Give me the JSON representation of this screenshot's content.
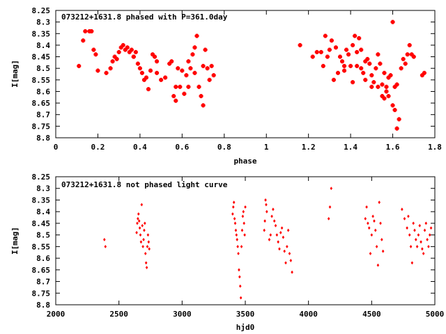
{
  "colors": {
    "points": "#ff0000",
    "frame": "#000000",
    "background": "#ffffff"
  },
  "chart_data": [
    {
      "type": "scatter",
      "title": "073212+1631.8 phased with P=361.0day",
      "xlabel": "phase",
      "ylabel": "I[mag]",
      "xlim": [
        0,
        1.8
      ],
      "ylim": [
        8.25,
        8.8
      ],
      "y_inverted": true,
      "x_ticks": [
        "0",
        "0.2",
        "0.4",
        "0.6",
        "0.8",
        "1",
        "1.2",
        "1.4",
        "1.6",
        "1.8"
      ],
      "y_ticks": [
        "8.25",
        "8.3",
        "8.35",
        "8.4",
        "8.45",
        "8.5",
        "8.55",
        "8.6",
        "8.65",
        "8.7",
        "8.75",
        "8.8"
      ],
      "grid": false,
      "marker": "cross",
      "points": [
        [
          0.11,
          8.49
        ],
        [
          0.13,
          8.38
        ],
        [
          0.14,
          8.34
        ],
        [
          0.16,
          8.34
        ],
        [
          0.17,
          8.34
        ],
        [
          0.18,
          8.42
        ],
        [
          0.19,
          8.44
        ],
        [
          0.2,
          8.51
        ],
        [
          0.24,
          8.52
        ],
        [
          0.26,
          8.5
        ],
        [
          0.27,
          8.47
        ],
        [
          0.28,
          8.45
        ],
        [
          0.29,
          8.46
        ],
        [
          0.3,
          8.43
        ],
        [
          0.31,
          8.41
        ],
        [
          0.32,
          8.4
        ],
        [
          0.33,
          8.42
        ],
        [
          0.34,
          8.41
        ],
        [
          0.35,
          8.43
        ],
        [
          0.36,
          8.42
        ],
        [
          0.37,
          8.45
        ],
        [
          0.38,
          8.43
        ],
        [
          0.39,
          8.48
        ],
        [
          0.4,
          8.5
        ],
        [
          0.41,
          8.52
        ],
        [
          0.42,
          8.55
        ],
        [
          0.43,
          8.54
        ],
        [
          0.44,
          8.59
        ],
        [
          0.45,
          8.51
        ],
        [
          0.46,
          8.44
        ],
        [
          0.47,
          8.45
        ],
        [
          0.48,
          8.47
        ],
        [
          0.5,
          8.55
        ],
        [
          0.52,
          8.54
        ],
        [
          0.54,
          8.48
        ],
        [
          0.55,
          8.47
        ],
        [
          0.56,
          8.62
        ],
        [
          0.57,
          8.58
        ],
        [
          0.58,
          8.5
        ],
        [
          0.59,
          8.58
        ],
        [
          0.6,
          8.51
        ],
        [
          0.61,
          8.61
        ],
        [
          0.62,
          8.53
        ],
        [
          0.63,
          8.47
        ],
        [
          0.64,
          8.5
        ],
        [
          0.65,
          8.44
        ],
        [
          0.66,
          8.41
        ],
        [
          0.67,
          8.36
        ],
        [
          0.68,
          8.58
        ],
        [
          0.69,
          8.62
        ],
        [
          0.7,
          8.49
        ],
        [
          0.71,
          8.42
        ],
        [
          0.72,
          8.5
        ],
        [
          0.73,
          8.55
        ],
        [
          0.74,
          8.49
        ],
        [
          0.75,
          8.53
        ],
        [
          0.63,
          8.58
        ],
        [
          0.66,
          8.52
        ],
        [
          0.7,
          8.66
        ],
        [
          0.57,
          8.64
        ],
        [
          0.48,
          8.52
        ],
        [
          0.37,
          8.45
        ],
        [
          1.16,
          8.4
        ],
        [
          1.22,
          8.45
        ],
        [
          1.24,
          8.43
        ],
        [
          1.26,
          8.43
        ],
        [
          1.27,
          8.49
        ],
        [
          1.28,
          8.36
        ],
        [
          1.29,
          8.45
        ],
        [
          1.3,
          8.42
        ],
        [
          1.31,
          8.38
        ],
        [
          1.32,
          8.55
        ],
        [
          1.33,
          8.41
        ],
        [
          1.34,
          8.52
        ],
        [
          1.35,
          8.45
        ],
        [
          1.36,
          8.47
        ],
        [
          1.37,
          8.49
        ],
        [
          1.38,
          8.42
        ],
        [
          1.39,
          8.44
        ],
        [
          1.4,
          8.49
        ],
        [
          1.41,
          8.4
        ],
        [
          1.42,
          8.36
        ],
        [
          1.43,
          8.43
        ],
        [
          1.44,
          8.37
        ],
        [
          1.45,
          8.5
        ],
        [
          1.46,
          8.52
        ],
        [
          1.47,
          8.55
        ],
        [
          1.48,
          8.46
        ],
        [
          1.49,
          8.48
        ],
        [
          1.5,
          8.53
        ],
        [
          1.51,
          8.56
        ],
        [
          1.52,
          8.5
        ],
        [
          1.53,
          8.44
        ],
        [
          1.54,
          8.48
        ],
        [
          1.55,
          8.57
        ],
        [
          1.56,
          8.52
        ],
        [
          1.57,
          8.6
        ],
        [
          1.58,
          8.54
        ],
        [
          1.59,
          8.53
        ],
        [
          1.6,
          8.3
        ],
        [
          1.61,
          8.58
        ],
        [
          1.62,
          8.57
        ],
        [
          1.63,
          8.72
        ],
        [
          1.64,
          8.5
        ],
        [
          1.65,
          8.46
        ],
        [
          1.66,
          8.48
        ],
        [
          1.67,
          8.44
        ],
        [
          1.68,
          8.4
        ],
        [
          1.69,
          8.44
        ],
        [
          1.7,
          8.45
        ],
        [
          1.74,
          8.53
        ],
        [
          1.75,
          8.52
        ],
        [
          1.62,
          8.76
        ],
        [
          1.61,
          8.68
        ],
        [
          1.6,
          8.66
        ],
        [
          1.58,
          8.62
        ],
        [
          1.56,
          8.63
        ],
        [
          1.45,
          8.42
        ],
        [
          1.47,
          8.47
        ],
        [
          1.53,
          8.58
        ],
        [
          1.55,
          8.62
        ],
        [
          1.57,
          8.58
        ],
        [
          1.5,
          8.58
        ],
        [
          1.43,
          8.49
        ],
        [
          1.41,
          8.56
        ],
        [
          1.37,
          8.51
        ]
      ]
    },
    {
      "type": "scatter",
      "title": "073212+1631.8 not phased light curve",
      "xlabel": "hjd0",
      "ylabel": "I[mag]",
      "xlim": [
        2000,
        5000
      ],
      "ylim": [
        8.25,
        8.8
      ],
      "y_inverted": true,
      "x_ticks": [
        "2000",
        "2500",
        "3000",
        "3500",
        "4000",
        "4500",
        "5000"
      ],
      "y_ticks": [
        "8.25",
        "8.3",
        "8.35",
        "8.4",
        "8.45",
        "8.5",
        "8.55",
        "8.6",
        "8.65",
        "8.7",
        "8.75",
        "8.8"
      ],
      "grid": false,
      "marker": "diamond",
      "points": [
        [
          2385,
          8.52
        ],
        [
          2393,
          8.55
        ],
        [
          2640,
          8.49
        ],
        [
          2645,
          8.45
        ],
        [
          2650,
          8.43
        ],
        [
          2655,
          8.41
        ],
        [
          2660,
          8.44
        ],
        [
          2665,
          8.47
        ],
        [
          2670,
          8.5
        ],
        [
          2675,
          8.53
        ],
        [
          2680,
          8.37
        ],
        [
          2685,
          8.46
        ],
        [
          2690,
          8.55
        ],
        [
          2695,
          8.52
        ],
        [
          2700,
          8.48
        ],
        [
          2705,
          8.45
        ],
        [
          2710,
          8.58
        ],
        [
          2715,
          8.62
        ],
        [
          2720,
          8.64
        ],
        [
          2725,
          8.55
        ],
        [
          2730,
          8.5
        ],
        [
          2735,
          8.53
        ],
        [
          2740,
          8.56
        ],
        [
          3400,
          8.41
        ],
        [
          3405,
          8.38
        ],
        [
          3410,
          8.36
        ],
        [
          3415,
          8.43
        ],
        [
          3420,
          8.45
        ],
        [
          3425,
          8.48
        ],
        [
          3430,
          8.5
        ],
        [
          3435,
          8.52
        ],
        [
          3440,
          8.55
        ],
        [
          3445,
          8.58
        ],
        [
          3450,
          8.65
        ],
        [
          3455,
          8.68
        ],
        [
          3460,
          8.72
        ],
        [
          3465,
          8.77
        ],
        [
          3470,
          8.55
        ],
        [
          3475,
          8.48
        ],
        [
          3480,
          8.42
        ],
        [
          3485,
          8.4
        ],
        [
          3490,
          8.45
        ],
        [
          3495,
          8.5
        ],
        [
          3500,
          8.38
        ],
        [
          3650,
          8.48
        ],
        [
          3655,
          8.44
        ],
        [
          3660,
          8.35
        ],
        [
          3665,
          8.37
        ],
        [
          3670,
          8.4
        ],
        [
          3690,
          8.52
        ],
        [
          3700,
          8.5
        ],
        [
          3710,
          8.42
        ],
        [
          3720,
          8.39
        ],
        [
          3730,
          8.44
        ],
        [
          3740,
          8.46
        ],
        [
          3750,
          8.5
        ],
        [
          3760,
          8.53
        ],
        [
          3770,
          8.56
        ],
        [
          3780,
          8.49
        ],
        [
          3790,
          8.47
        ],
        [
          3800,
          8.51
        ],
        [
          3810,
          8.57
        ],
        [
          3820,
          8.62
        ],
        [
          3830,
          8.55
        ],
        [
          3840,
          8.48
        ],
        [
          3850,
          8.58
        ],
        [
          3860,
          8.61
        ],
        [
          3870,
          8.66
        ],
        [
          4160,
          8.43
        ],
        [
          4170,
          8.38
        ],
        [
          4180,
          8.3
        ],
        [
          4450,
          8.43
        ],
        [
          4460,
          8.38
        ],
        [
          4470,
          8.45
        ],
        [
          4480,
          8.47
        ],
        [
          4490,
          8.58
        ],
        [
          4500,
          8.5
        ],
        [
          4510,
          8.42
        ],
        [
          4520,
          8.44
        ],
        [
          4530,
          8.48
        ],
        [
          4540,
          8.55
        ],
        [
          4550,
          8.63
        ],
        [
          4560,
          8.36
        ],
        [
          4570,
          8.45
        ],
        [
          4580,
          8.52
        ],
        [
          4590,
          8.57
        ],
        [
          4740,
          8.39
        ],
        [
          4760,
          8.43
        ],
        [
          4780,
          8.47
        ],
        [
          4790,
          8.42
        ],
        [
          4800,
          8.5
        ],
        [
          4810,
          8.55
        ],
        [
          4820,
          8.62
        ],
        [
          4830,
          8.45
        ],
        [
          4840,
          8.48
        ],
        [
          4850,
          8.52
        ],
        [
          4860,
          8.55
        ],
        [
          4870,
          8.5
        ],
        [
          4880,
          8.46
        ],
        [
          4890,
          8.53
        ],
        [
          4900,
          8.56
        ],
        [
          4910,
          8.58
        ],
        [
          4920,
          8.48
        ],
        [
          4930,
          8.45
        ],
        [
          4940,
          8.52
        ],
        [
          4950,
          8.55
        ],
        [
          4960,
          8.5
        ],
        [
          4970,
          8.47
        ]
      ]
    }
  ]
}
